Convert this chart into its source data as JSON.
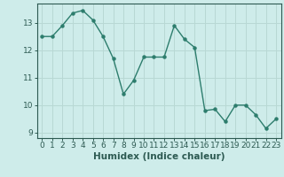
{
  "xlabel": "Humidex (Indice chaleur)",
  "x": [
    0,
    1,
    2,
    3,
    4,
    5,
    6,
    7,
    8,
    9,
    10,
    11,
    12,
    13,
    14,
    15,
    16,
    17,
    18,
    19,
    20,
    21,
    22,
    23
  ],
  "y": [
    12.5,
    12.5,
    12.9,
    13.35,
    13.45,
    13.1,
    12.5,
    11.7,
    10.4,
    10.9,
    11.75,
    11.75,
    11.75,
    12.9,
    12.4,
    12.1,
    9.8,
    9.85,
    9.4,
    10.0,
    10.0,
    9.65,
    9.15,
    9.5
  ],
  "line_color": "#2d7d6d",
  "marker": "o",
  "marker_size": 2.2,
  "line_width": 1.0,
  "bg_color": "#ceecea",
  "grid_color": "#b8d8d4",
  "ylim": [
    8.8,
    13.7
  ],
  "xlim": [
    -0.5,
    23.5
  ],
  "yticks": [
    9,
    10,
    11,
    12,
    13
  ],
  "xticks": [
    0,
    1,
    2,
    3,
    4,
    5,
    6,
    7,
    8,
    9,
    10,
    11,
    12,
    13,
    14,
    15,
    16,
    17,
    18,
    19,
    20,
    21,
    22,
    23
  ],
  "tick_fontsize": 6.5,
  "xlabel_fontsize": 7.5,
  "axis_color": "#2d5a52"
}
